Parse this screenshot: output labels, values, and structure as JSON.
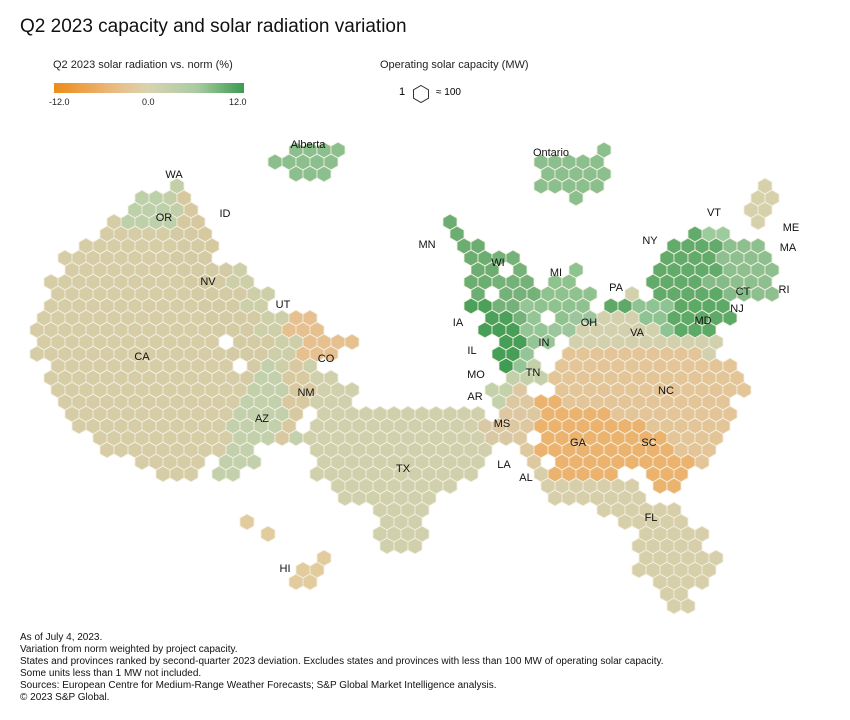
{
  "title": "Q2 2023 capacity and solar radiation variation",
  "legend": {
    "color_title": "Q2 2023 solar radiation vs. norm (%)",
    "ticks": [
      "-12.0",
      "0.0",
      "12.0"
    ],
    "size_title": "Operating solar capacity (MW)",
    "size_unit": "1",
    "size_value": "≈ 100",
    "colors": {
      "low": "#ee8b19",
      "mid": "#d8d3b0",
      "high": "#3d9b4f"
    }
  },
  "chart_data": {
    "type": "hex-tile-map",
    "title": "Q2 2023 capacity and solar radiation variation",
    "color_scale": {
      "label": "Q2 2023 solar radiation vs. norm (%)",
      "min": -12.0,
      "mid": 0.0,
      "max": 12.0
    },
    "size_scale": {
      "label": "Operating solar capacity (MW)",
      "hex_equals_mw": 100
    },
    "regions": [
      {
        "name": "Alberta",
        "color": "#8bbf8e",
        "hexes": 12
      },
      {
        "name": "Ontario",
        "color": "#8bbf8e",
        "hexes": 17
      },
      {
        "name": "WA",
        "color": "#c3cfa8",
        "hexes": 3
      },
      {
        "name": "OR",
        "color": "#bcd0aa",
        "hexes": 12
      },
      {
        "name": "ID",
        "color": "#d6c9a0",
        "hexes": 6
      },
      {
        "name": "CA",
        "color": "#d6cca6",
        "hexes": 330
      },
      {
        "name": "NV",
        "color": "#d4cba4",
        "hexes": 60
      },
      {
        "name": "UT",
        "color": "#cdcfa9",
        "hexes": 25
      },
      {
        "name": "CO",
        "color": "#e6c08e",
        "hexes": 17
      },
      {
        "name": "AZ",
        "color": "#c2d1ac",
        "hexes": 60
      },
      {
        "name": "NM",
        "color": "#d9c9a0",
        "hexes": 14
      },
      {
        "name": "TX",
        "color": "#d0d0ac",
        "hexes": 170
      },
      {
        "name": "HI",
        "color": "#e2cb9c",
        "hexes": 6
      },
      {
        "name": "MN",
        "color": "#6cae72",
        "hexes": 14
      },
      {
        "name": "WI",
        "color": "#74b27a",
        "hexes": 14
      },
      {
        "name": "IA",
        "color": "#4ba05a",
        "hexes": 4
      },
      {
        "name": "IL",
        "color": "#479e57",
        "hexes": 12
      },
      {
        "name": "MI",
        "color": "#8ec38f",
        "hexes": 13
      },
      {
        "name": "IN",
        "color": "#94c597",
        "hexes": 14
      },
      {
        "name": "OH",
        "color": "#9cc79e",
        "hexes": 5
      },
      {
        "name": "MO",
        "color": "#3f9c52",
        "hexes": 1
      },
      {
        "name": "TN",
        "color": "#c4d0aa",
        "hexes": 6
      },
      {
        "name": "AR",
        "color": "#c4d2ab",
        "hexes": 6
      },
      {
        "name": "MS",
        "color": "#ddc8a2",
        "hexes": 10
      },
      {
        "name": "LA",
        "color": "#d8c9a4",
        "hexes": 5
      },
      {
        "name": "AL",
        "color": "#dec89e",
        "hexes": 4
      },
      {
        "name": "GA",
        "color": "#ebb36e",
        "hexes": 60
      },
      {
        "name": "SC",
        "color": "#ebb36e",
        "hexes": 26
      },
      {
        "name": "NC",
        "color": "#e4c597",
        "hexes": 110
      },
      {
        "name": "VA",
        "color": "#d2d0ad",
        "hexes": 55
      },
      {
        "name": "FL",
        "color": "#d6cfaa",
        "hexes": 95
      },
      {
        "name": "PA",
        "color": "#5fa968",
        "hexes": 3
      },
      {
        "name": "NY",
        "color": "#63ab6b",
        "hexes": 45
      },
      {
        "name": "VT",
        "color": "#9ccb9e",
        "hexes": 3
      },
      {
        "name": "ME",
        "color": "#d6d1aa",
        "hexes": 5
      },
      {
        "name": "MA",
        "color": "#8ec08f",
        "hexes": 35
      },
      {
        "name": "CT",
        "color": "#85bb88",
        "hexes": 8
      },
      {
        "name": "RI",
        "color": "#8ec08f",
        "hexes": 4
      },
      {
        "name": "NJ",
        "color": "#5daa67",
        "hexes": 24
      },
      {
        "name": "MD",
        "color": "#8ec393",
        "hexes": 10
      }
    ]
  },
  "notes": [
    "As of July 4, 2023.",
    "Variation from norm weighted by project capacity.",
    "States and provinces ranked by second-quarter 2023 deviation. Excludes states and provinces with less than 100 MW of operating solar capacity.",
    "Some units less than 1 MW not included.",
    "Sources: European Centre for Medium-Range Weather Forecasts; S&P Global Market Intelligence analysis.",
    "© 2023 S&P Global."
  ]
}
